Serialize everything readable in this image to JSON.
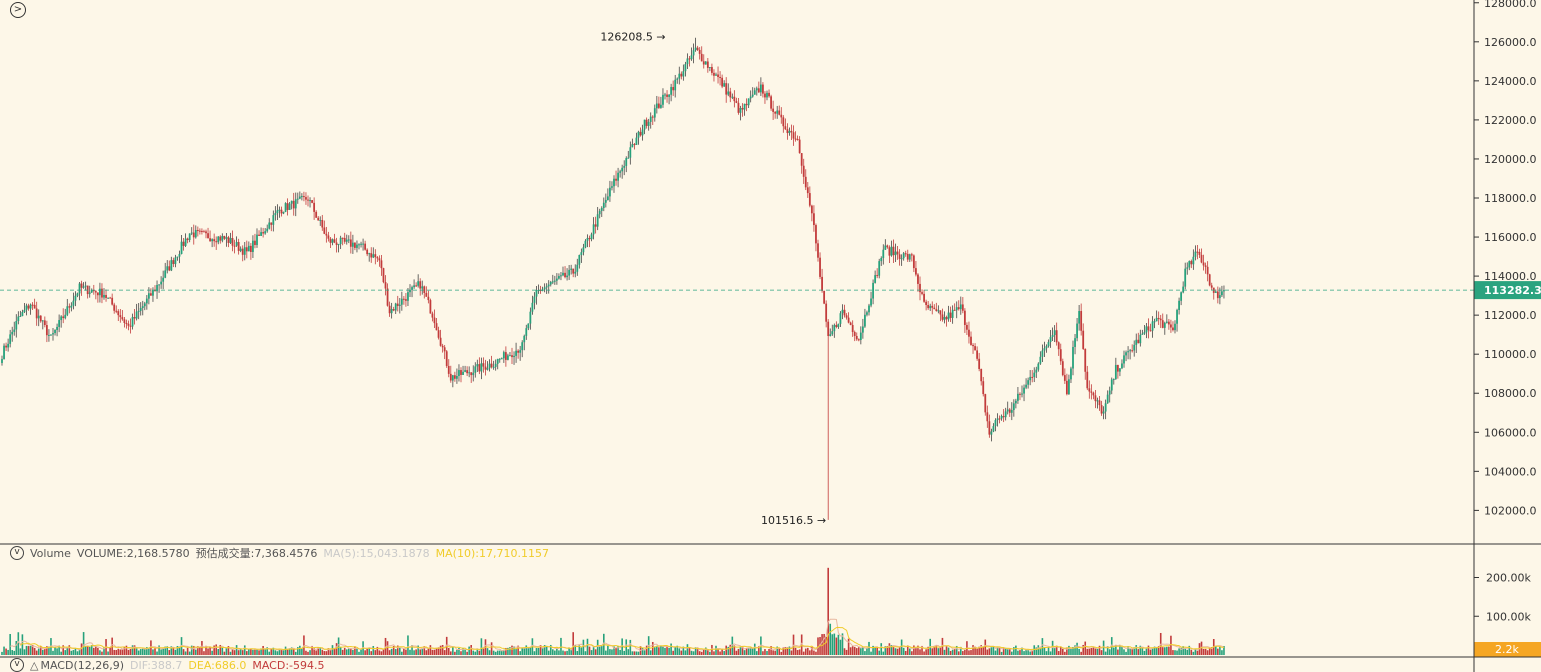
{
  "colors": {
    "up": "#26a17b",
    "down": "#c23b3b",
    "wick": "#444444",
    "ma5": "#c9c9c9",
    "ma10": "#f0cc2a",
    "price_tag": "#2aa37f",
    "vol_tag": "#f5a623",
    "grid": "#333333"
  },
  "icons": {
    "expand": "chevron-right-icon",
    "collapse": "chevron-down-icon",
    "bell": "bell-icon"
  },
  "labels": {
    "volume_title": "Volume",
    "volume_value": "VOLUME:2,168.5780",
    "volume_estimate": "预估成交量:7,368.4576",
    "volume_ma5": "MA(5):15,043.1878",
    "volume_ma10": "MA(10):17,710.1157",
    "macd_title": "MACD(12,26,9)",
    "macd_dif": "DIF:388.7",
    "macd_dea": "DEA:686.0",
    "macd_value": "MACD:-594.5",
    "current_price": "113282.3",
    "current_volume": "2.2k",
    "high_label": "126208.5",
    "low_label": "101516.5"
  },
  "chart_data": [
    {
      "type": "candlestick",
      "price_axis": {
        "ticks": [
          "128000.0",
          "126000.0",
          "124000.0",
          "122000.0",
          "120000.0",
          "118000.0",
          "116000.0",
          "114000.0",
          "112000.0",
          "110000.0",
          "108000.0",
          "106000.0",
          "104000.0",
          "102000.0"
        ],
        "range": [
          101200,
          128500
        ]
      },
      "current_price": 113282.3,
      "high": 126208.5,
      "low": 101516.5,
      "anchors": [
        [
          0,
          110000
        ],
        [
          8,
          111800
        ],
        [
          14,
          112600
        ],
        [
          24,
          110800
        ],
        [
          38,
          113400
        ],
        [
          50,
          113100
        ],
        [
          62,
          111400
        ],
        [
          78,
          113800
        ],
        [
          92,
          116200
        ],
        [
          110,
          115900
        ],
        [
          120,
          115200
        ],
        [
          136,
          117400
        ],
        [
          150,
          118000
        ],
        [
          160,
          115800
        ],
        [
          175,
          115600
        ],
        [
          185,
          114800
        ],
        [
          190,
          112200
        ],
        [
          205,
          113600
        ],
        [
          212,
          111800
        ],
        [
          220,
          108800
        ],
        [
          240,
          109500
        ],
        [
          255,
          110400
        ],
        [
          262,
          113200
        ],
        [
          280,
          114200
        ],
        [
          300,
          118800
        ],
        [
          315,
          121800
        ],
        [
          330,
          123900
        ],
        [
          340,
          125600
        ],
        [
          352,
          124000
        ],
        [
          362,
          122400
        ],
        [
          372,
          123700
        ],
        [
          382,
          121900
        ],
        [
          390,
          121000
        ],
        [
          398,
          116500
        ],
        [
          405,
          110700
        ],
        [
          412,
          112200
        ],
        [
          420,
          110800
        ],
        [
          432,
          115400
        ],
        [
          446,
          114900
        ],
        [
          452,
          112500
        ],
        [
          462,
          111800
        ],
        [
          470,
          112400
        ],
        [
          478,
          109700
        ],
        [
          484,
          105900
        ],
        [
          488,
          106700
        ],
        [
          494,
          107100
        ],
        [
          502,
          108400
        ],
        [
          510,
          110000
        ],
        [
          516,
          111400
        ],
        [
          522,
          108000
        ],
        [
          528,
          112400
        ],
        [
          532,
          108200
        ],
        [
          540,
          107000
        ],
        [
          546,
          109200
        ],
        [
          556,
          110600
        ],
        [
          566,
          111800
        ],
        [
          574,
          111200
        ],
        [
          580,
          114200
        ],
        [
          586,
          115200
        ],
        [
          590,
          114500
        ],
        [
          594,
          113000
        ],
        [
          599,
          113200
        ]
      ],
      "volume_axis": {
        "ticks": [
          "200.00k",
          "100.00k"
        ],
        "range": [
          0,
          240000
        ]
      },
      "current_volume": 2200
    },
    {
      "type": "macd",
      "dif": 388.7,
      "dea": 686.0,
      "macd": -594.5
    }
  ]
}
